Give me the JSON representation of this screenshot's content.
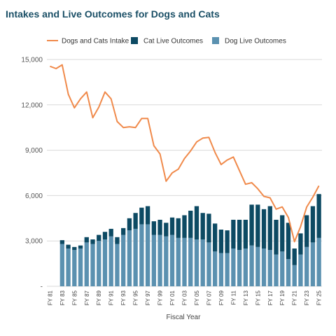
{
  "chart_data": {
    "type": "bar",
    "title": "Intakes and Live Outcomes for Dogs and Cats",
    "xlabel": "Fiscal Year",
    "ylabel": "",
    "ylim": [
      0,
      15000
    ],
    "y_ticks": [
      0,
      3000,
      6000,
      9000,
      12000,
      15000
    ],
    "y_tick_labels": [
      "-",
      "3,000",
      "6,000",
      "9,000",
      "12,000",
      "15,000"
    ],
    "grid": true,
    "legend_position": "top",
    "categories": [
      "FY 81",
      "FY 82",
      "FY 83",
      "FY 84",
      "FY 85",
      "FY 86",
      "FY 87",
      "FY 88",
      "FY 89",
      "FY 90",
      "FY 91",
      "FY 92",
      "FY 93",
      "FY 94",
      "FY 95",
      "FY 96",
      "FY 97",
      "FY 98",
      "FY 99",
      "FY 00",
      "FY 01",
      "FY 02",
      "FY 03",
      "FY 04",
      "FY 05",
      "FY 06",
      "FY 07",
      "FY 08",
      "FY 09",
      "FY 10",
      "FY 11",
      "FY 12",
      "FY 13",
      "FY 14",
      "FY 15",
      "FY 16",
      "FY 17",
      "FY 18",
      "FY 19",
      "FY 20",
      "FY 21",
      "FY 22",
      "FY 23",
      "FY 24",
      "FY 25"
    ],
    "x_tick_labels": [
      "FY 81",
      "",
      "FY 83",
      "",
      "FY 85",
      "",
      "FY 87",
      "",
      "FY 89",
      "",
      "FY 91",
      "",
      "FY 93",
      "",
      "FY 95",
      "",
      "FY 97",
      "",
      "FY 99",
      "",
      "FY 01",
      "",
      "FY 03",
      "",
      "FY 05",
      "",
      "FY 07",
      "",
      "FY 09",
      "",
      "FY 11",
      "",
      "FY 13",
      "",
      "FY 15",
      "",
      "FY 17",
      "",
      "FY 19",
      "",
      "FY 21",
      "",
      "FY 23",
      "",
      "FY 25"
    ],
    "series": [
      {
        "name": "Dog Live Outcomes",
        "type": "bar",
        "color": "#5b91b0",
        "values": [
          0,
          0,
          2800,
          2500,
          2400,
          2500,
          2900,
          2800,
          3000,
          3100,
          3300,
          2800,
          3400,
          3700,
          3800,
          4100,
          4100,
          3400,
          3400,
          3300,
          3400,
          3200,
          3200,
          3200,
          3100,
          3100,
          2900,
          2300,
          2200,
          2200,
          2500,
          2400,
          2500,
          2700,
          2600,
          2500,
          2400,
          2100,
          2300,
          1800,
          1400,
          2100,
          2600,
          2900,
          3200
        ]
      },
      {
        "name": "Cat Live Outcomes",
        "type": "bar",
        "color": "#0d4a63",
        "values": [
          0,
          0,
          250,
          250,
          200,
          200,
          350,
          300,
          400,
          500,
          500,
          450,
          450,
          800,
          1050,
          1100,
          1200,
          900,
          1000,
          900,
          1150,
          1300,
          1500,
          1800,
          2200,
          1750,
          1900,
          1850,
          1550,
          1500,
          1900,
          2000,
          1900,
          2700,
          2800,
          2600,
          2900,
          2300,
          2400,
          2400,
          1100,
          1400,
          2100,
          2400,
          2900
        ]
      },
      {
        "name": "Dogs and Cats Intake",
        "type": "line",
        "color": "#f08a4b",
        "values": [
          14550,
          14400,
          14650,
          12700,
          11800,
          12400,
          12850,
          11150,
          11850,
          12850,
          12400,
          10900,
          10500,
          10550,
          10500,
          11100,
          11100,
          9300,
          8750,
          6950,
          7500,
          7750,
          8450,
          8950,
          9550,
          9800,
          9850,
          8850,
          8050,
          8350,
          8550,
          7650,
          6750,
          6850,
          6450,
          5950,
          5850,
          5100,
          5250,
          4550,
          2950,
          3950,
          5250,
          5900,
          6650
        ]
      }
    ],
    "legend_order": [
      "Dogs and Cats Intake",
      "Cat Live Outcomes",
      "Dog Live Outcomes"
    ]
  }
}
